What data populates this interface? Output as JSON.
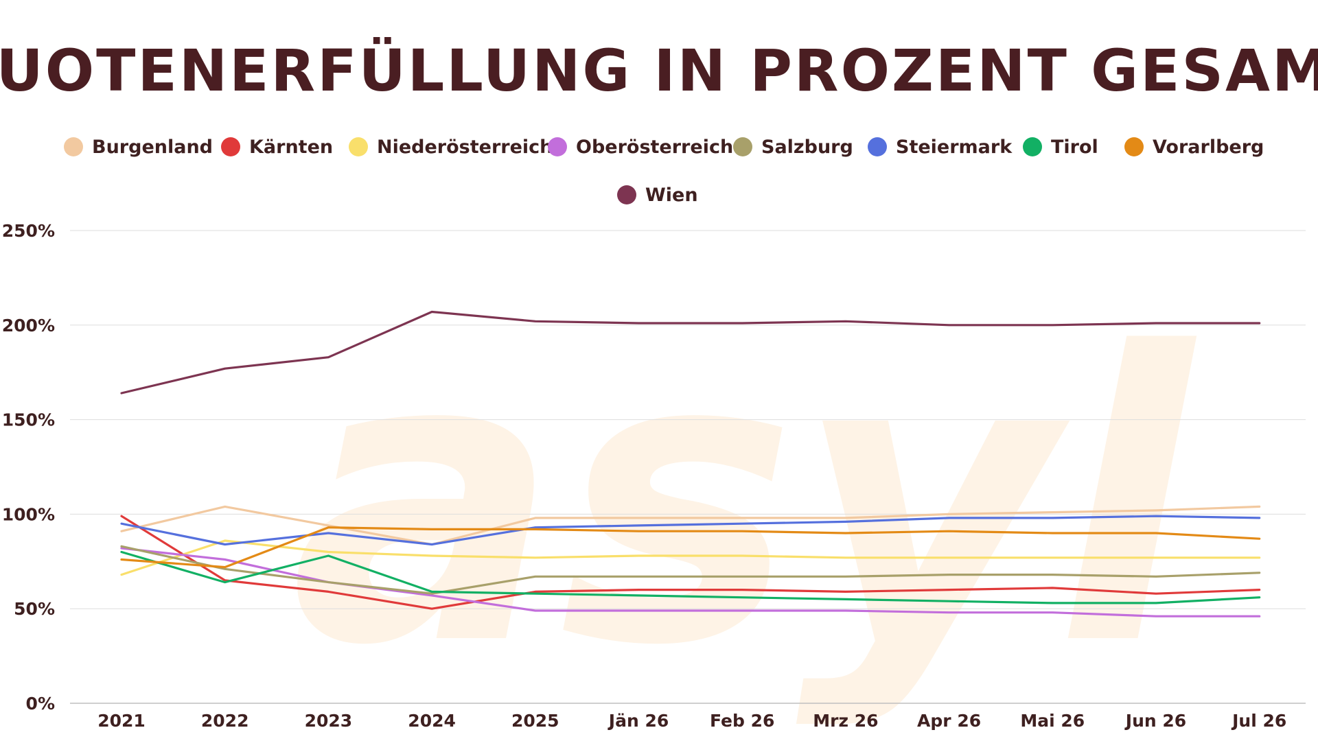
{
  "chart_data": {
    "type": "line",
    "title": "QUOTENERFÜLLUNG IN PROZENT GESAMT",
    "xlabel": "",
    "ylabel": "",
    "categories": [
      "2021",
      "2022",
      "2023",
      "2024",
      "2025",
      "Jän 26",
      "Feb 26",
      "Mrz 26",
      "Apr 26",
      "Mai 26",
      "Jun 26",
      "Jul 26"
    ],
    "y_ticks": [
      "0%",
      "50%",
      "100%",
      "150%",
      "200%",
      "250%"
    ],
    "y_tick_values": [
      0,
      50,
      100,
      150,
      200,
      250
    ],
    "ylim": [
      0,
      250
    ],
    "grid": true,
    "legend_position": "top-center",
    "watermark": "asyl",
    "series": [
      {
        "name": "Burgenland",
        "color": "#F2C9A0",
        "values": [
          91,
          104,
          94,
          84,
          98,
          98,
          98,
          98,
          100,
          101,
          102,
          104
        ]
      },
      {
        "name": "Kärnten",
        "color": "#E03A3A",
        "values": [
          99,
          65,
          59,
          50,
          59,
          60,
          60,
          59,
          60,
          61,
          58,
          60
        ]
      },
      {
        "name": "Niederösterreich",
        "color": "#F9DF6B",
        "values": [
          68,
          86,
          80,
          78,
          77,
          78,
          78,
          77,
          77,
          77,
          77,
          77
        ]
      },
      {
        "name": "Oberösterreich",
        "color": "#C26EDB",
        "values": [
          82,
          76,
          64,
          57,
          49,
          49,
          49,
          49,
          48,
          48,
          46,
          46
        ]
      },
      {
        "name": "Salzburg",
        "color": "#A8A06A",
        "values": [
          83,
          71,
          64,
          58,
          67,
          67,
          67,
          67,
          68,
          68,
          67,
          69
        ]
      },
      {
        "name": "Steiermark",
        "color": "#5570DD",
        "values": [
          95,
          84,
          90,
          84,
          93,
          94,
          95,
          96,
          98,
          98,
          99,
          98
        ]
      },
      {
        "name": "Tirol",
        "color": "#12B064",
        "values": [
          80,
          64,
          78,
          59,
          58,
          57,
          56,
          55,
          54,
          53,
          53,
          56
        ]
      },
      {
        "name": "Vorarlberg",
        "color": "#E38A16",
        "values": [
          76,
          72,
          93,
          92,
          92,
          91,
          91,
          90,
          91,
          90,
          90,
          87
        ]
      },
      {
        "name": "Wien",
        "color": "#7D3451",
        "values": [
          164,
          177,
          183,
          207,
          202,
          201,
          201,
          202,
          200,
          200,
          201,
          201
        ]
      }
    ],
    "title_color": "#4A1E22",
    "text_color": "#3E2020",
    "grid_color": "#DDDDDD",
    "watermark_color": "#FEF3E6"
  }
}
